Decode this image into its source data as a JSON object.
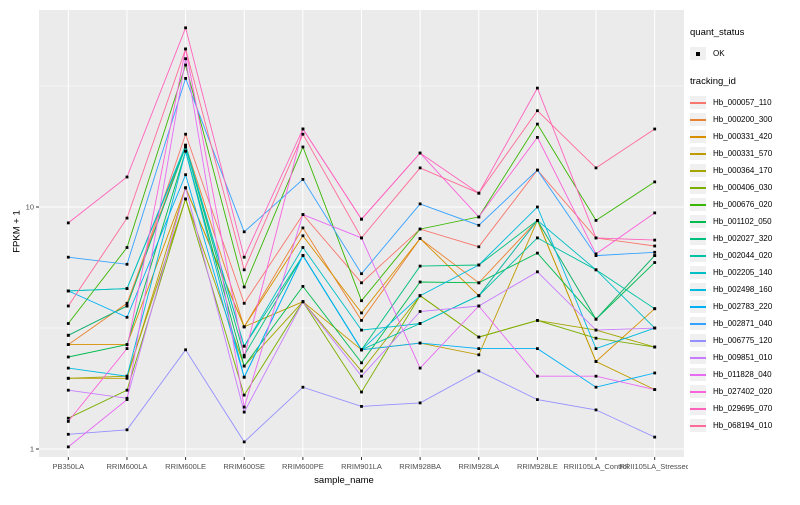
{
  "figure": {
    "background": "#FFFFFF",
    "panel_bg": "#EBEBEB",
    "grid_color": "#FFFFFF",
    "tick_text_color": "#4D4D4D",
    "marker_color": "#000000"
  },
  "axes": {
    "y_label": "FPKM + 1",
    "x_label": "sample_name"
  },
  "legend": {
    "quant_status_title": "quant_status",
    "ok_label": "OK",
    "tracking_id_title": "tracking_id"
  },
  "chart_data": {
    "type": "line",
    "x_axis_label": "sample_name",
    "y_axis_label": "FPKM + 1",
    "y_scale": "log10",
    "y_range": [
      1,
      65
    ],
    "grid": true,
    "legend_position": "right",
    "quant_status": "OK",
    "y_major_gridlines": [
      1,
      10
    ],
    "y_minor_gridlines": [
      3.162,
      31.62
    ],
    "y_tick_labels": [
      {
        "value": 10,
        "label": "10"
      },
      {
        "value": 1,
        "label": "1"
      }
    ],
    "x_categories": [
      "PB350LA",
      "RRIM600LA",
      "RRIM600LE",
      "RRIM600SE",
      "RRIM600PE",
      "RRIM901LA",
      "RRIM928BA",
      "RRIM928LA",
      "RRIM928LE",
      "RRII105LA_Control",
      "RRII105LA_Stressed"
    ],
    "series": [
      {
        "tracking_id": "Hb_000057_110",
        "color": "#F8766D",
        "values": [
          2.95,
          3.9,
          20,
          4.0,
          9.3,
          4.86,
          8.1,
          6.85,
          14.2,
          7.45,
          6.9
        ]
      },
      {
        "tracking_id": "Hb_000200_300",
        "color": "#EA8331",
        "values": [
          2.7,
          4.0,
          18,
          3.2,
          8.2,
          3.4,
          7.4,
          4.86,
          8.8,
          3.44,
          6.3
        ]
      },
      {
        "tracking_id": "Hb_000331_420",
        "color": "#D89000",
        "values": [
          2.7,
          2.7,
          12,
          3.2,
          7.6,
          3.65,
          7.4,
          4.3,
          8.8,
          2.3,
          3.8
        ]
      },
      {
        "tracking_id": "Hb_000331_570",
        "color": "#C09B00",
        "values": [
          1.96,
          1.96,
          12,
          3.2,
          4.06,
          2.57,
          2.74,
          2.45,
          8.8,
          2.3,
          1.76
        ]
      },
      {
        "tracking_id": "Hb_000364_170",
        "color": "#A3A500",
        "values": [
          1.96,
          2.0,
          10.8,
          2.2,
          4.06,
          2.1,
          4.3,
          2.9,
          3.4,
          3.1,
          2.64
        ]
      },
      {
        "tracking_id": "Hb_000406_030",
        "color": "#7CAE00",
        "values": [
          1.34,
          1.75,
          10.8,
          1.67,
          4.06,
          1.72,
          4.3,
          2.9,
          3.4,
          2.87,
          2.64
        ]
      },
      {
        "tracking_id": "Hb_000676_020",
        "color": "#39B600",
        "values": [
          3.3,
          6.8,
          38.6,
          4.67,
          17.7,
          4.1,
          8.1,
          9.1,
          22,
          8.8,
          12.7
        ]
      },
      {
        "tracking_id": "Hb_001102_050",
        "color": "#00BB4E",
        "values": [
          2.4,
          2.7,
          17,
          2.2,
          4.7,
          2.27,
          4.9,
          4.86,
          6.45,
          3.44,
          5.9
        ]
      },
      {
        "tracking_id": "Hb_002027_320",
        "color": "#00BF7D",
        "values": [
          2.95,
          3.9,
          17.7,
          2.44,
          6.3,
          2.57,
          5.7,
          5.76,
          8.8,
          3.44,
          6.3
        ]
      },
      {
        "tracking_id": "Hb_002044_020",
        "color": "#00C1A3",
        "values": [
          4.5,
          4.6,
          17.7,
          2.66,
          6.3,
          2.57,
          3.3,
          4.3,
          7.45,
          5.5,
          3.8
        ]
      },
      {
        "tracking_id": "Hb_002205_140",
        "color": "#00BFC4",
        "values": [
          4.5,
          4.6,
          18,
          2.66,
          6.8,
          3.1,
          3.3,
          4.3,
          8.8,
          5.5,
          3.16
        ]
      },
      {
        "tracking_id": "Hb_002498_160",
        "color": "#00BAE0",
        "values": [
          2.16,
          2.0,
          17,
          1.98,
          6.3,
          2.57,
          4.3,
          5.76,
          10,
          2.6,
          3.16
        ]
      },
      {
        "tracking_id": "Hb_002783_220",
        "color": "#00B0F6",
        "values": [
          4.5,
          3.5,
          13.6,
          1.98,
          6.3,
          2.57,
          2.74,
          2.6,
          2.6,
          1.8,
          2.06
        ]
      },
      {
        "tracking_id": "Hb_002871_040",
        "color": "#35A2FF",
        "values": [
          6.2,
          5.8,
          34,
          7.9,
          13,
          5.3,
          10.3,
          8.4,
          14.2,
          6.3,
          6.5
        ]
      },
      {
        "tracking_id": "Hb_006775_120",
        "color": "#9590FF",
        "values": [
          1.15,
          1.2,
          2.57,
          1.07,
          1.8,
          1.5,
          1.55,
          2.1,
          1.6,
          1.45,
          1.12
        ]
      },
      {
        "tracking_id": "Hb_009851_010",
        "color": "#C77CFF",
        "values": [
          1.75,
          1.62,
          12,
          1.42,
          4.06,
          2.0,
          3.7,
          3.9,
          5.4,
          3.1,
          3.16
        ]
      },
      {
        "tracking_id": "Hb_011828_040",
        "color": "#E76BF3",
        "values": [
          1.02,
          1.6,
          41,
          1.49,
          9.3,
          7.45,
          2.16,
          3.9,
          2.0,
          2.0,
          1.76
        ]
      },
      {
        "tracking_id": "Hb_027402_020",
        "color": "#FA62DB",
        "values": [
          1.3,
          2.6,
          45,
          2.4,
          21,
          8.9,
          16.7,
          9.1,
          19.4,
          6.4,
          9.45
        ]
      },
      {
        "tracking_id": "Hb_029695_070",
        "color": "#FF62BC",
        "values": [
          8.6,
          13.3,
          55,
          6.2,
          21,
          8.9,
          16.7,
          11.4,
          31,
          7.45,
          7.3
        ]
      },
      {
        "tracking_id": "Hb_068194_010",
        "color": "#FF6A98",
        "values": [
          3.9,
          9.0,
          45,
          5.5,
          20,
          7.45,
          14.5,
          11.4,
          25,
          14.5,
          21
        ]
      }
    ]
  }
}
